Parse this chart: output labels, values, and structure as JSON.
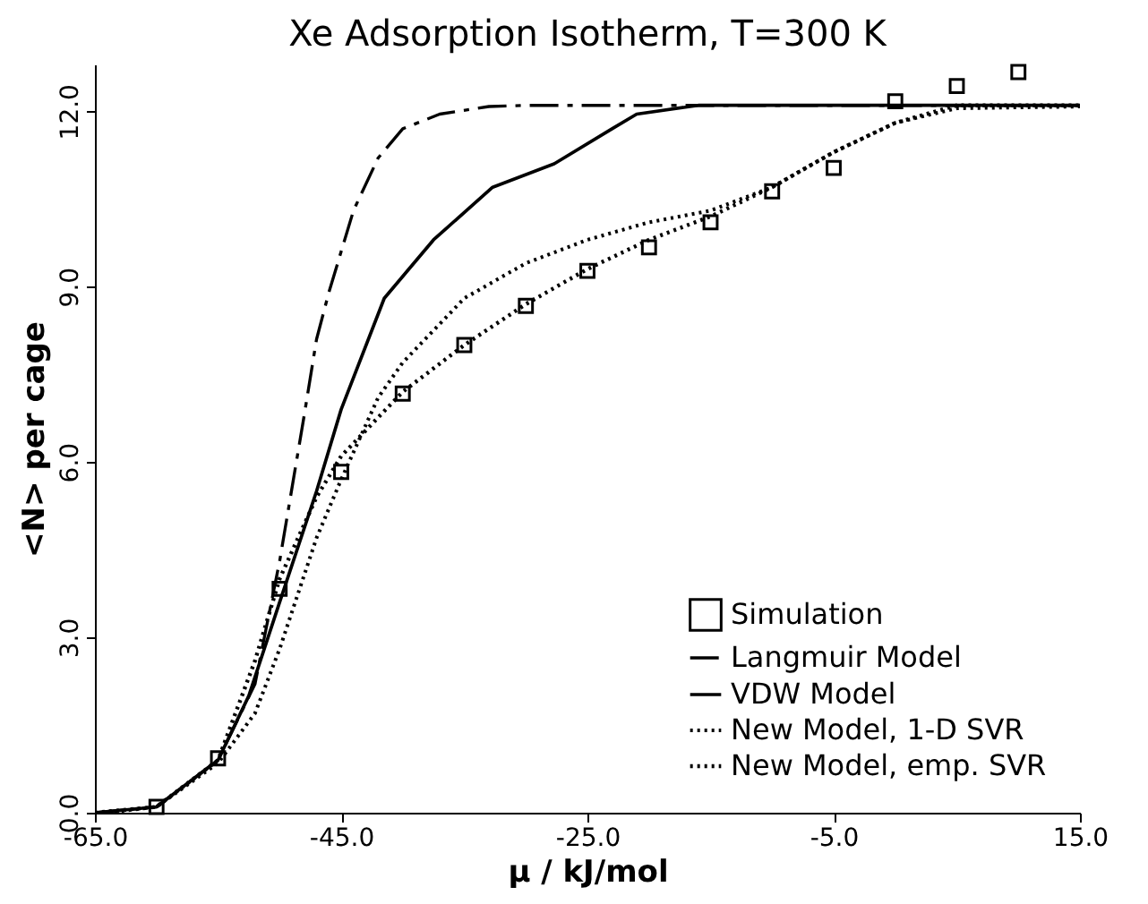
{
  "chart_data": {
    "type": "line",
    "title": "Xe Adsorption Isotherm, T=300 K",
    "xlabel": "μ / kJ/mol",
    "ylabel": "<N> per cage",
    "xlim": [
      -65,
      15
    ],
    "ylim": [
      0,
      12.8
    ],
    "xticks": [
      {
        "value": -65,
        "label": "-65.0"
      },
      {
        "value": -45,
        "label": "-45.0"
      },
      {
        "value": -25,
        "label": "-25.0"
      },
      {
        "value": -5,
        "label": "-5.0"
      },
      {
        "value": 15,
        "label": "15.0"
      }
    ],
    "yticks": [
      {
        "value": 0,
        "label": "0.0"
      },
      {
        "value": 3,
        "label": "3.0"
      },
      {
        "value": 6,
        "label": "6.0"
      },
      {
        "value": 9,
        "label": "9.0"
      },
      {
        "value": 12,
        "label": "12.0"
      }
    ],
    "grid": false,
    "legend": "bottom right",
    "series": [
      {
        "name": "Simulation",
        "type": "scatter",
        "marker": "square",
        "color": "#000000",
        "x": [
          -60,
          -55,
          -50,
          -45,
          -40,
          -35,
          -30,
          -25,
          -20,
          -15,
          -10,
          -5,
          0,
          5,
          10
        ],
        "values": [
          0.1,
          0.93,
          3.83,
          5.83,
          7.17,
          8.0,
          8.67,
          9.27,
          9.67,
          10.1,
          10.63,
          11.03,
          12.17,
          12.43,
          12.67
        ]
      },
      {
        "name": "Langmuir Model",
        "line_style": "dashed",
        "color": "#000000",
        "x": [
          -65,
          -60,
          -55,
          -52,
          -50,
          -48,
          -47,
          -46,
          -44,
          -42,
          -40,
          -37,
          -33,
          -30,
          15
        ],
        "values": [
          0,
          0.1,
          0.9,
          2.2,
          4.3,
          6.8,
          8.1,
          8.9,
          10.3,
          11.2,
          11.7,
          11.95,
          12.08,
          12.1,
          12.1
        ]
      },
      {
        "name": "VDW Model",
        "line_style": "solid",
        "color": "#000000",
        "x": [
          -65,
          -60,
          -55,
          -52.5,
          -50,
          -47,
          -45,
          -41.5,
          -37.5,
          -32.7,
          -27.7,
          -23,
          -21,
          -16,
          -10,
          15
        ],
        "values": [
          0,
          0.1,
          0.9,
          2.0,
          3.6,
          5.5,
          6.9,
          8.8,
          9.8,
          10.7,
          11.1,
          11.7,
          11.95,
          12.1,
          12.1,
          12.1
        ]
      },
      {
        "name": "New Model, 1-D SVR",
        "line_style": "dotted",
        "color": "#000000",
        "x": [
          -64,
          -60,
          -55,
          -52,
          -50,
          -47,
          -45,
          -42,
          -40,
          -35,
          -30,
          -25,
          -20,
          -15,
          -10,
          -5,
          0,
          5,
          15
        ],
        "values": [
          0,
          0.1,
          0.85,
          1.7,
          2.8,
          4.7,
          5.7,
          7.1,
          7.7,
          8.8,
          9.4,
          9.8,
          10.1,
          10.3,
          10.7,
          11.3,
          11.8,
          12.05,
          12.08
        ]
      },
      {
        "name": "New Model, emp. SVR",
        "line_style": "dotted",
        "color": "#000000",
        "x": [
          -65,
          -60,
          -55,
          -52,
          -50,
          -47,
          -45,
          -40,
          -35,
          -30,
          -25,
          -20,
          -15,
          -10,
          -5,
          0,
          5,
          15
        ],
        "values": [
          0,
          0.1,
          0.9,
          2.6,
          4.0,
          5.4,
          6.1,
          7.2,
          8.0,
          8.7,
          9.3,
          9.8,
          10.2,
          10.7,
          11.3,
          11.8,
          12.1,
          12.1
        ]
      }
    ]
  }
}
